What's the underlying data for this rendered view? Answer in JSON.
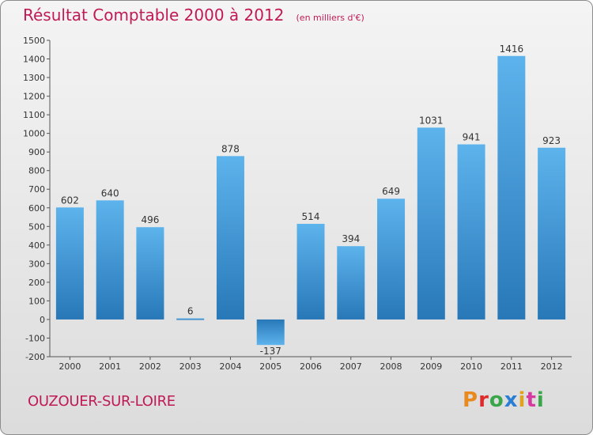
{
  "header": {
    "title": "Résultat Comptable 2000 à 2012",
    "subtitle": "(en milliers d'€)"
  },
  "footer": {
    "commune": "OUZOUER-SUR-LOIRE",
    "logo_letters": [
      "P",
      "r",
      "o",
      "x",
      "i",
      "t",
      "i"
    ],
    "logo_colors": [
      "#e98a1e",
      "#e02a2a",
      "#3aa64a",
      "#2a7fd4",
      "#e0a21e",
      "#d63aa0",
      "#3aa64a"
    ]
  },
  "colors": {
    "bar_light": "#5db3ec",
    "bar_dark": "#2878b8",
    "accent": "#c01a55"
  },
  "chart_data": {
    "type": "bar",
    "title": "Résultat Comptable 2000 à 2012",
    "subtitle": "(en milliers d'€)",
    "xlabel": "",
    "ylabel": "",
    "categories": [
      "2000",
      "2001",
      "2002",
      "2003",
      "2004",
      "2005",
      "2006",
      "2007",
      "2008",
      "2009",
      "2010",
      "2011",
      "2012"
    ],
    "values": [
      602,
      640,
      496,
      6,
      878,
      -137,
      514,
      394,
      649,
      1031,
      941,
      1416,
      923
    ],
    "ylim": [
      -200,
      1500
    ],
    "yticks": [
      -200,
      -100,
      0,
      100,
      200,
      300,
      400,
      500,
      600,
      700,
      800,
      900,
      1000,
      1100,
      1200,
      1300,
      1400,
      1500
    ],
    "grid": false,
    "legend": "none"
  }
}
